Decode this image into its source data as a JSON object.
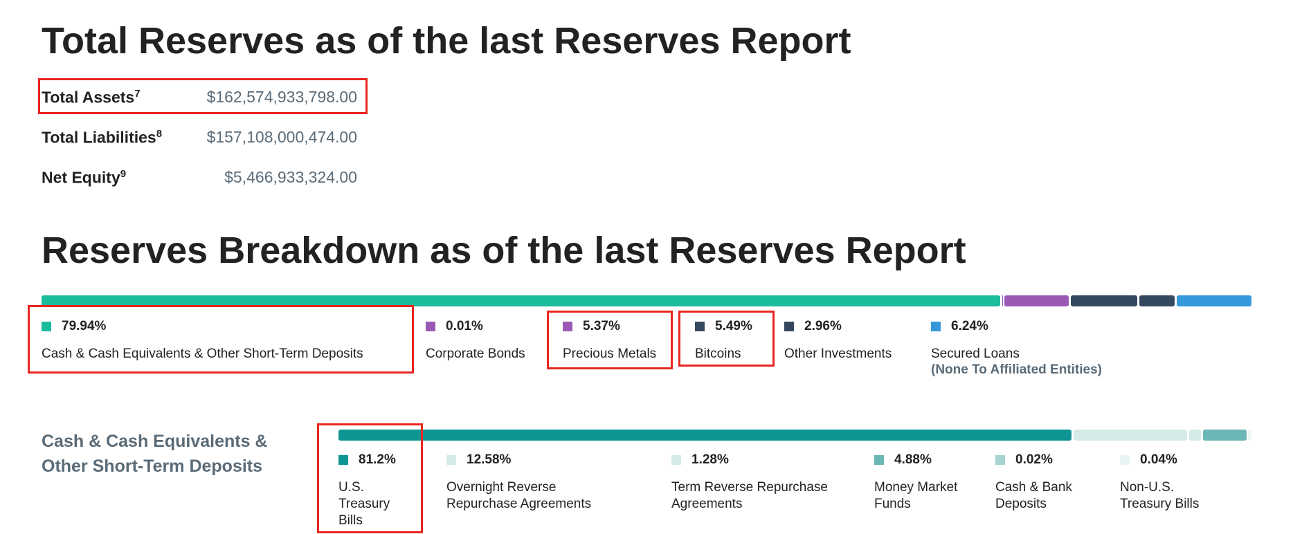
{
  "summary": {
    "title": "Total Reserves as of the last Reserves Report",
    "rows": [
      {
        "label": "Total Assets",
        "note": "7",
        "amount": "$162,574,933,798.00"
      },
      {
        "label": "Total Liabilities",
        "note": "8",
        "amount": "$157,108,000,474.00"
      },
      {
        "label": "Net Equity",
        "note": "9",
        "amount": "$5,466,933,324.00"
      }
    ]
  },
  "breakdown": {
    "title": "Reserves Breakdown as of the last Reserves Report",
    "items": [
      {
        "value": 79.94,
        "label": "79.94%",
        "name": "Cash & Cash Equivalents & Other Short-Term Deposits",
        "color": "#1abc9c"
      },
      {
        "value": 0.01,
        "label": "0.01%",
        "name": "Corporate Bonds",
        "color": "#9b59b6"
      },
      {
        "value": 5.37,
        "label": "5.37%",
        "name": "Precious Metals",
        "color": "#9b59b6"
      },
      {
        "value": 5.49,
        "label": "5.49%",
        "name": "Bitcoins",
        "color": "#34495e"
      },
      {
        "value": 2.96,
        "label": "2.96%",
        "name": "Other Investments",
        "color": "#34495e"
      },
      {
        "value": 6.24,
        "label": "6.24%",
        "name": "Secured Loans",
        "subtext": "(None To Affiliated Entities)",
        "color": "#3498db"
      }
    ]
  },
  "cash": {
    "title": "Cash & Cash Equivalents & Other Short-Term Deposits",
    "items": [
      {
        "value": 81.2,
        "label": "81.2%",
        "name": "U.S. Treasury Bills",
        "color": "#0e9594"
      },
      {
        "value": 12.58,
        "label": "12.58%",
        "name": "Overnight Reverse Repurchase Agreements",
        "color": "#d5ebe9"
      },
      {
        "value": 1.28,
        "label": "1.28%",
        "name": "Term Reverse Repurchase Agreements",
        "color": "#d5ebe9"
      },
      {
        "value": 4.88,
        "label": "4.88%",
        "name": "Money Market Funds",
        "color": "#6bb7b5"
      },
      {
        "value": 0.02,
        "label": "0.02%",
        "name": "Cash & Bank Deposits",
        "color": "#a8d3d3"
      },
      {
        "value": 0.04,
        "label": "0.04%",
        "name": "Non-U.S. Treasury Bills",
        "color": "#e8f4f3"
      }
    ]
  }
}
